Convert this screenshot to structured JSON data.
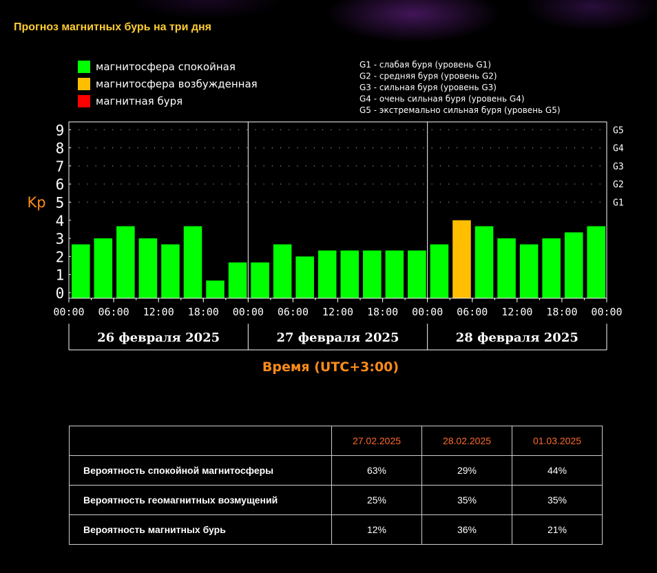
{
  "page_title": "Прогноз магнитных бурь на три дня",
  "chart_data": {
    "type": "bar",
    "ylabel": "Kp",
    "xlabel": "Время (UTC+3:00)",
    "ylim": [
      0,
      9
    ],
    "y_ticks": [
      "0",
      "1",
      "2",
      "3",
      "4",
      "5",
      "6",
      "7",
      "8",
      "9"
    ],
    "g_levels": [
      {
        "label": "G1",
        "kp": 5
      },
      {
        "label": "G2",
        "kp": 6
      },
      {
        "label": "G3",
        "kp": 7
      },
      {
        "label": "G4",
        "kp": 8
      },
      {
        "label": "G5",
        "kp": 9
      }
    ],
    "legend": [
      {
        "label": "магнитосфера спокойная",
        "color": "#00ff00"
      },
      {
        "label": "магнитосфера возбужденная",
        "color": "#ffbf00"
      },
      {
        "label": "магнитная буря",
        "color": "#ff0000"
      }
    ],
    "g_legend": [
      "G1 - слабая буря (уровень G1)",
      "G2 - средняя буря (уровень G2)",
      "G3 - сильная буря (уровень G3)",
      "G4 - очень сильная буря (уровень G4)",
      "G5 - экстремально сильная буря (уровень G5)"
    ],
    "time_ticks": [
      "00:00",
      "06:00",
      "12:00",
      "18:00",
      "00:00",
      "06:00",
      "12:00",
      "18:00",
      "00:00",
      "06:00",
      "12:00",
      "18:00",
      "00:00"
    ],
    "days": [
      "26 февраля 2025",
      "27 февраля 2025",
      "28 февраля 2025"
    ],
    "series": [
      {
        "values": [
          2.67,
          3.0,
          3.67,
          3.0,
          2.67,
          3.67,
          0.67,
          1.67,
          1.67,
          2.67,
          2.0,
          2.33,
          2.33,
          2.33,
          2.33,
          2.33,
          2.67,
          4.0,
          3.67,
          3.0,
          2.67,
          3.0,
          3.33,
          3.67
        ],
        "levels": [
          "calm",
          "calm",
          "calm",
          "calm",
          "calm",
          "calm",
          "calm",
          "calm",
          "calm",
          "calm",
          "calm",
          "calm",
          "calm",
          "calm",
          "calm",
          "calm",
          "calm",
          "excited",
          "calm",
          "calm",
          "calm",
          "calm",
          "calm",
          "calm"
        ]
      }
    ]
  },
  "table": {
    "headers": [
      "27.02.2025",
      "28.02.2025",
      "01.03.2025"
    ],
    "rows": [
      {
        "label": "Вероятность спокойной магнитосферы",
        "values": [
          "63%",
          "29%",
          "44%"
        ]
      },
      {
        "label": "Вероятность геомагнитных возмущений",
        "values": [
          "25%",
          "35%",
          "35%"
        ]
      },
      {
        "label": "Вероятность магнитных бурь",
        "values": [
          "12%",
          "36%",
          "21%"
        ]
      }
    ]
  }
}
